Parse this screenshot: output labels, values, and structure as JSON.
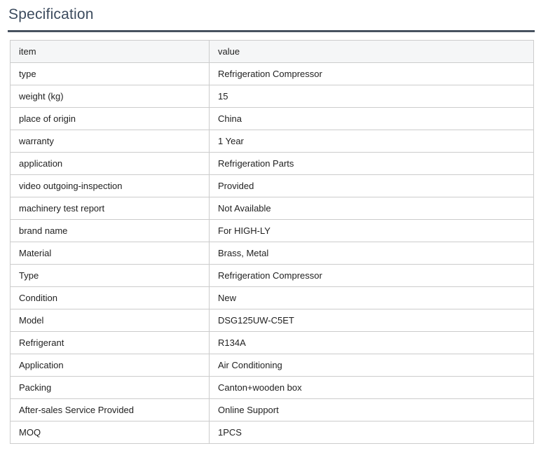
{
  "page": {
    "title": "Specification"
  },
  "colors": {
    "title_text": "#3c4b5e",
    "divider_rule": "#47525f",
    "table_border": "#cccccc",
    "header_row_bg": "#f5f6f7",
    "body_text": "#1f1f1f",
    "page_bg": "#ffffff"
  },
  "table": {
    "columns": [
      "item",
      "value"
    ],
    "rows": [
      {
        "item": "type",
        "value": "Refrigeration Compressor"
      },
      {
        "item": "weight (kg)",
        "value": "15"
      },
      {
        "item": "place of origin",
        "value": "China"
      },
      {
        "item": "warranty",
        "value": "1 Year"
      },
      {
        "item": "application",
        "value": "Refrigeration Parts"
      },
      {
        "item": "video outgoing-inspection",
        "value": "Provided"
      },
      {
        "item": "machinery test report",
        "value": "Not Available"
      },
      {
        "item": "brand name",
        "value": "For HIGH-LY"
      },
      {
        "item": "Material",
        "value": "Brass, Metal"
      },
      {
        "item": "Type",
        "value": "Refrigeration Compressor"
      },
      {
        "item": "Condition",
        "value": "New"
      },
      {
        "item": "Model",
        "value": "DSG125UW-C5ET"
      },
      {
        "item": "Refrigerant",
        "value": "R134A"
      },
      {
        "item": "Application",
        "value": "Air Conditioning"
      },
      {
        "item": "Packing",
        "value": "Canton+wooden box"
      },
      {
        "item": "After-sales Service Provided",
        "value": "Online Support"
      },
      {
        "item": "MOQ",
        "value": "1PCS"
      }
    ]
  }
}
